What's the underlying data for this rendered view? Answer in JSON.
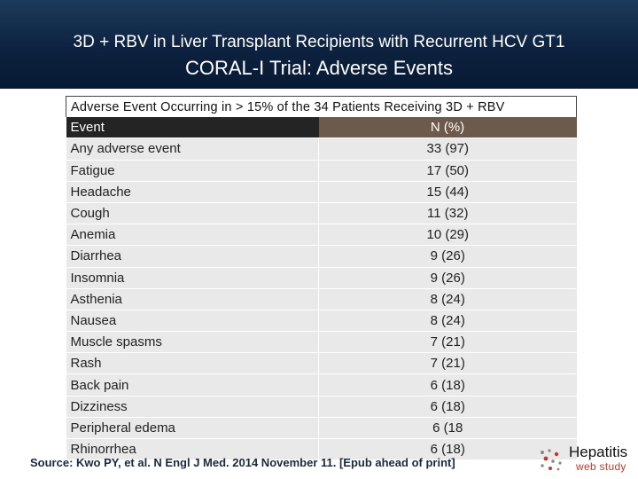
{
  "header": {
    "title_line1": "3D + RBV in Liver Transplant Recipients with Recurrent HCV GT1",
    "title_line2": "CORAL-I Trial: Adverse Events"
  },
  "table": {
    "caption": "Adverse Event Occurring in > 15% of the 34 Patients Receiving 3D + RBV",
    "headers": {
      "event": "Event",
      "value": "N (%)"
    },
    "rows": [
      {
        "event": "Any adverse event",
        "value": "33 (97)"
      },
      {
        "event": "Fatigue",
        "value": "17 (50)"
      },
      {
        "event": "Headache",
        "value": "15 (44)"
      },
      {
        "event": "Cough",
        "value": "11 (32)"
      },
      {
        "event": "Anemia",
        "value": "10 (29)"
      },
      {
        "event": "Diarrhea",
        "value": "9 (26)"
      },
      {
        "event": "Insomnia",
        "value": "9 (26)"
      },
      {
        "event": "Asthenia",
        "value": "8 (24)"
      },
      {
        "event": "Nausea",
        "value": "8 (24)"
      },
      {
        "event": "Muscle spasms",
        "value": "7 (21)"
      },
      {
        "event": "Rash",
        "value": "7 (21)"
      },
      {
        "event": "Back pain",
        "value": "6 (18)"
      },
      {
        "event": "Dizziness",
        "value": "6 (18)"
      },
      {
        "event": "Peripheral edema",
        "value": "6 (18"
      },
      {
        "event": "Rhinorrhea",
        "value": "6 (18)"
      }
    ]
  },
  "footer": {
    "source": "Source: Kwo PY, et al. N Engl J Med. 2014 November 11. [Epub ahead of print]",
    "logo_title": "Hepatitis",
    "logo_subtitle": "web study",
    "logo_icon": "hepatitis-logo-icon"
  },
  "colors": {
    "header_bg": "#0d2240",
    "table_header_bg": "#242424",
    "table_header_value_bg": "#6e5a4a",
    "row_bg": "#e9e9e9",
    "logo_accent": "#c0392b"
  }
}
